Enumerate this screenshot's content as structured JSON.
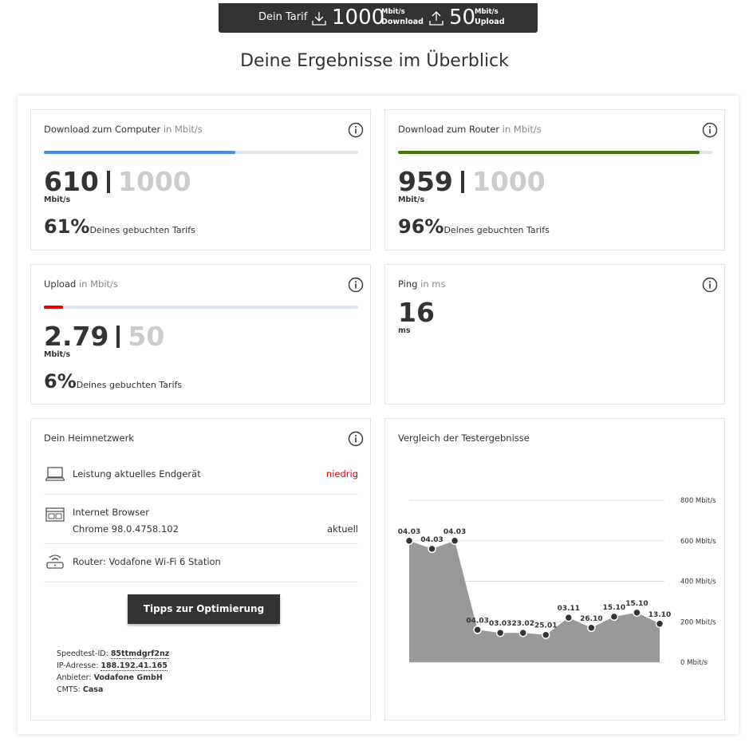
{
  "header": {
    "tarif_label": "Dein Tarif",
    "download": {
      "value": 1000,
      "unit": "Mbit/s",
      "label": "Download"
    },
    "upload": {
      "value": 50,
      "unit": "Mbit/s",
      "label": "Upload"
    }
  },
  "title": "Deine Ergebnisse im Überblick",
  "cards": [
    {
      "title": "Download zum Computer",
      "unit_label": "in Mbit/s",
      "value": 610,
      "max": 1000,
      "unit": "Mbit/s",
      "percent": {
        "value": 61,
        "label": "61%"
      },
      "percent_text": "Deines gebuchten Tarifs",
      "color": "#3d8ee8"
    },
    {
      "title": "Download zum Router",
      "unit_label": "in Mbit/s",
      "value": 959,
      "max": 1000,
      "unit": "Mbit/s",
      "percent": {
        "value": 96,
        "label": "96%"
      },
      "percent_text": "Deines gebuchten Tarifs",
      "color": "#3f7a00"
    },
    {
      "title": "Upload",
      "unit_label": "in Mbit/s",
      "value": 2.79,
      "max": 50,
      "unit": "Mbit/s",
      "percent": {
        "value": 6,
        "label": "6%"
      },
      "percent_text": "Deines gebuchten Tarifs",
      "color": "#e60000"
    },
    {
      "title": "Ping",
      "unit_label": "in ms",
      "value": 16,
      "unit": "ms"
    }
  ],
  "home_network": {
    "title": "Dein Heimnetzwerk",
    "rows": [
      {
        "label": "Leistung aktuelles Endgerät",
        "status": "niedrig"
      },
      {
        "label": "Internet Browser",
        "detail": "Chrome 98.0.4758.102",
        "status": "aktuell"
      },
      {
        "label": "Router: Vodafone Wi-Fi 6 Station"
      }
    ],
    "button": "Tipps zur Optimierung",
    "info": [
      {
        "key": "Speedtest-ID:",
        "value": "85ttmdgrf2nz"
      },
      {
        "key": "IP-Adresse:",
        "value": "188.192.41.165"
      },
      {
        "key": "Anbieter:",
        "value": "Vodafone GmbH"
      },
      {
        "key": "CMTS:",
        "value": "Casa"
      }
    ]
  },
  "chart_data": {
    "type": "area",
    "title": "Vergleich der Testergebnisse",
    "categories": [
      "04.03",
      "04.03",
      "04.03",
      "04.03",
      "03.03",
      "23.02",
      "25.01",
      "03.11",
      "26.10",
      "15.10",
      "15.10",
      "13.10"
    ],
    "values": [
      600,
      560,
      600,
      160,
      145,
      145,
      135,
      220,
      170,
      225,
      245,
      190
    ],
    "color": "#999999",
    "ylim": [
      0,
      800
    ],
    "yticks": [
      {
        "value": 0,
        "label": "0 Mbit/s"
      },
      {
        "value": 200,
        "label": "200 Mbit/s"
      },
      {
        "value": 400,
        "label": "400 Mbit/s"
      },
      {
        "value": 600,
        "label": "600 Mbit/s"
      },
      {
        "value": 800,
        "label": "800 Mbit/s"
      }
    ],
    "grid": true
  }
}
